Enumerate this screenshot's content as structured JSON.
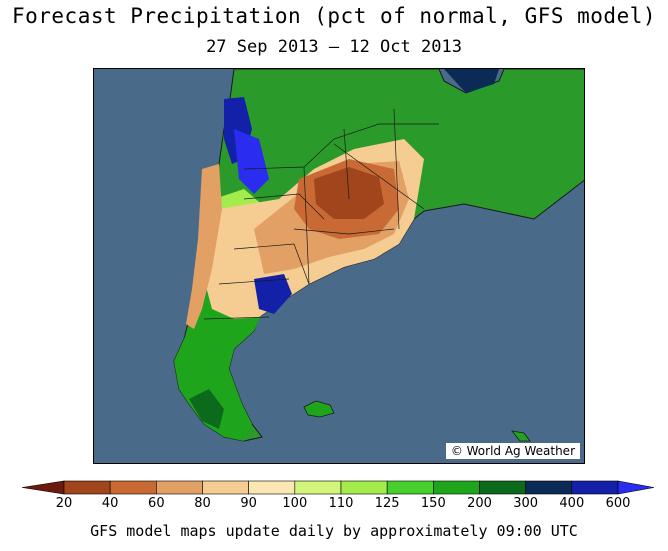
{
  "title": "Forecast Precipitation (pct of normal, GFS model)",
  "subtitle": "27 Sep 2013 – 12 Oct 2013",
  "credit": "© World Ag Weather",
  "footer": "GFS model maps update daily by approximately 09:00 UTC",
  "legend": {
    "ticks": [
      "20",
      "40",
      "60",
      "80",
      "90",
      "100",
      "110",
      "125",
      "150",
      "200",
      "300",
      "400",
      "600"
    ],
    "colors": [
      "#6b1a0e",
      "#a0451c",
      "#c96a34",
      "#e3a064",
      "#f5cc92",
      "#fbe7b4",
      "#d4f57c",
      "#a4ec4b",
      "#47cf2e",
      "#1ea51c",
      "#0c6a1c",
      "#0b2a56",
      "#1320a8",
      "#2a2cf0"
    ]
  },
  "colors": {
    "ocean": "#4a6a8a",
    "land_other": "#2a9a2a",
    "border": "#1a1a1a"
  }
}
